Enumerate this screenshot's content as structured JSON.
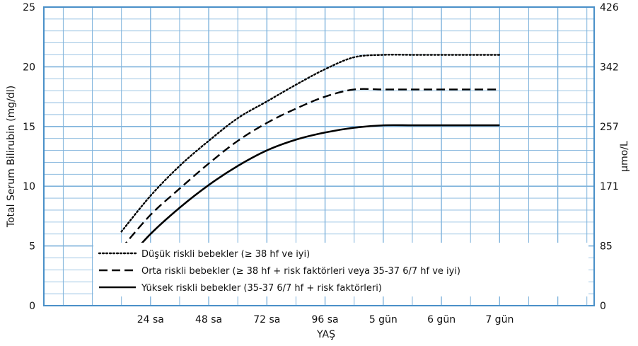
{
  "chart_data": {
    "type": "line",
    "xlabel": "YAŞ",
    "ylabel": "Total Serum Bilirubin (mg/dl)",
    "ylabel_right": "µmo/L",
    "ylim": [
      0,
      25
    ],
    "xlim": [
      -20,
      207
    ],
    "x_ticks": [
      {
        "value": 24,
        "label": "24 sa"
      },
      {
        "value": 48,
        "label": "48 sa"
      },
      {
        "value": 72,
        "label": "72 sa"
      },
      {
        "value": 96,
        "label": "96 sa"
      },
      {
        "value": 120,
        "label": "5 gün"
      },
      {
        "value": 144,
        "label": "6 gün"
      },
      {
        "value": 168,
        "label": "7 gün"
      }
    ],
    "y_ticks": [
      0,
      5,
      10,
      15,
      20,
      25
    ],
    "y_ticks_right": [
      {
        "value": 0,
        "label": "0"
      },
      {
        "value": 5,
        "label": "85"
      },
      {
        "value": 10,
        "label": "171"
      },
      {
        "value": 15,
        "label": "257"
      },
      {
        "value": 20,
        "label": "342"
      },
      {
        "value": 25,
        "label": "426"
      }
    ],
    "grid": true,
    "legend_position": "bottom-left",
    "series": [
      {
        "name": "Düşük riskli bebekler (≥ 38 hf ve iyi)",
        "line_style": "dotted",
        "x": [
          12,
          24,
          36,
          48,
          60,
          72,
          84,
          96,
          108,
          120,
          132,
          144,
          156,
          168
        ],
        "y": [
          6.2,
          9.2,
          11.7,
          13.8,
          15.7,
          17.1,
          18.5,
          19.8,
          20.8,
          21.0,
          21.0,
          21.0,
          21.0,
          21.0
        ]
      },
      {
        "name": "Orta riskli bebekler (≥ 38 hf  + risk faktörleri veya 35-37 6/7 hf ve iyi)",
        "line_style": "dashed",
        "x": [
          12,
          24,
          36,
          48,
          60,
          72,
          84,
          96,
          108,
          120,
          132,
          144,
          156,
          168
        ],
        "y": [
          4.8,
          7.6,
          9.8,
          11.9,
          13.8,
          15.3,
          16.5,
          17.5,
          18.1,
          18.1,
          18.1,
          18.1,
          18.1,
          18.1
        ]
      },
      {
        "name": "Yüksek riskli bebekler (35-37 6/7 hf + risk faktörleri)",
        "line_style": "solid",
        "x": [
          12,
          24,
          36,
          48,
          60,
          72,
          84,
          96,
          108,
          120,
          132,
          144,
          156,
          168
        ],
        "y": [
          3.3,
          6.0,
          8.2,
          10.1,
          11.7,
          13.0,
          13.9,
          14.5,
          14.9,
          15.1,
          15.1,
          15.1,
          15.1,
          15.1
        ]
      }
    ]
  }
}
